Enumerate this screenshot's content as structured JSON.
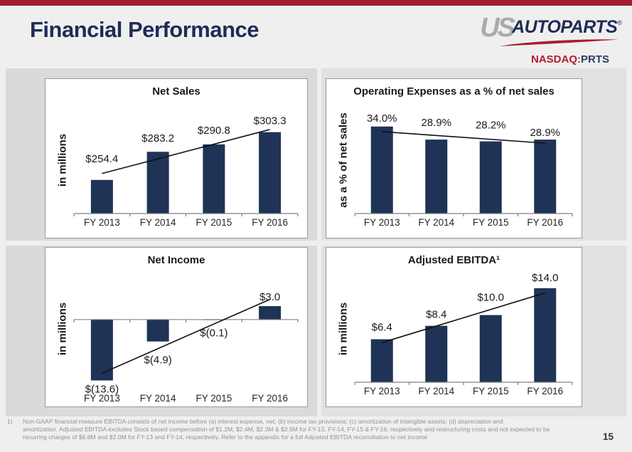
{
  "slide": {
    "title": "Financial Performance",
    "page_number": "15",
    "accent_color": "#A21D32",
    "title_color": "#1F2C55",
    "bar_color": "#1F3356"
  },
  "logo": {
    "us": "US",
    "autoparts": "AUTOPARTS",
    "registered": "®",
    "exchange_prefix": "NASDAQ:",
    "ticker": "PRTS"
  },
  "chart_data": [
    {
      "id": "net-sales",
      "type": "bar",
      "title": "Net Sales",
      "ylabel": "in millions",
      "categories": [
        "FY 2013",
        "FY 2014",
        "FY 2015",
        "FY 2016"
      ],
      "values": [
        254.4,
        283.2,
        290.8,
        303.3
      ],
      "labels": [
        "$254.4",
        "$283.2",
        "$290.8",
        "$303.3"
      ],
      "ylim": [
        220,
        330
      ],
      "baseline": "ymin",
      "grid": false,
      "legend": false,
      "trend": [
        261,
        306
      ],
      "label_offsets": [
        25,
        14,
        15,
        11
      ],
      "cat_y": 206
    },
    {
      "id": "operating-expenses",
      "type": "bar",
      "title": "Operating Expenses as a % of net sales",
      "ylabel": "as a % of net sales",
      "categories": [
        "FY 2013",
        "FY 2014",
        "FY 2015",
        "FY 2016"
      ],
      "values": [
        34.0,
        28.9,
        28.2,
        28.9
      ],
      "labels": [
        "34.0%",
        "28.9%",
        "28.2%",
        "28.9%"
      ],
      "ylim": [
        0,
        42
      ],
      "baseline": "zero",
      "grid": false,
      "legend": false,
      "trend": [
        32,
        27.5
      ],
      "label_offsets": [
        7,
        19,
        18,
        5
      ],
      "cat_y": 206
    },
    {
      "id": "net-income",
      "type": "bar",
      "title": "Net Income",
      "ylabel": "in millions",
      "categories": [
        "FY 2013",
        "FY 2014",
        "FY 2015",
        "FY 2016"
      ],
      "values": [
        -13.6,
        -4.9,
        -0.1,
        3.0
      ],
      "labels": [
        "$(13.6)",
        "$(4.9)",
        "$(0.1)",
        "$3.0"
      ],
      "ylim": [
        -14,
        10
      ],
      "baseline": "zero",
      "grid": false,
      "legend": false,
      "trend": [
        -12,
        4.5
      ],
      "label_offsets": [
        17,
        31,
        23,
        8
      ],
      "cat_y": 216
    },
    {
      "id": "adjusted-ebitda",
      "type": "bar",
      "title": "Adjusted EBITDA¹",
      "ylabel": "in millions",
      "categories": [
        "FY 2013",
        "FY 2014",
        "FY 2015",
        "FY 2016"
      ],
      "values": [
        6.4,
        8.4,
        10.0,
        14.0
      ],
      "labels": [
        "$6.4",
        "$8.4",
        "$10.0",
        "$14.0"
      ],
      "ylim": [
        0,
        16
      ],
      "baseline": "zero",
      "grid": false,
      "legend": false,
      "trend": [
        5.9,
        13.3
      ],
      "label_offsets": [
        12,
        11,
        20,
        10
      ],
      "cat_y": 206
    }
  ],
  "footnote": {
    "marker": "1)",
    "lines": [
      "Non-GAAP financial measure EBITDA consists of net income before (a) interest expense, net; (b) income tax provisions; (c) amortization of intangible assets; (d) depreciation and",
      "amortization.  Adjusted EBITDA excludes Stock based compensation of $1.2M, $2.4M, $2.3M & $2.9M for  FY-13, FY-14, FY-15 & FY-16, respectively and restructuring costs and not expected to be",
      "recurring charges of $6.8M and $2.0M for FY-13 and FY-14, respectively.  Refer to the appendix for a full Adjusted EBITDA reconciliation to net income"
    ]
  }
}
